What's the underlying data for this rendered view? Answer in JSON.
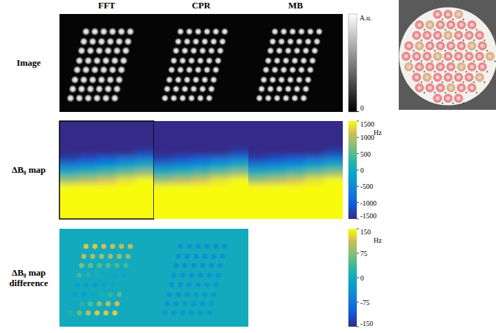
{
  "chart_data": {
    "type": "heatmap",
    "columns": [
      "FFT",
      "CPR",
      "MB"
    ],
    "rows": [
      "Image",
      "ΔB₀ map",
      "ΔB₀ map difference"
    ],
    "image": {
      "xlim": [
        0,
        128
      ],
      "ylim": [
        0,
        128
      ],
      "colorbar": {
        "label": "A.u.",
        "ticks": [
          0
        ]
      },
      "spots": [
        {
          "y": 23,
          "x": [
            36,
            48,
            60,
            72,
            84,
            96
          ]
        },
        {
          "y": 36,
          "x": [
            33,
            45,
            57,
            69,
            81,
            93
          ]
        },
        {
          "y": 48,
          "x": [
            30,
            42,
            54,
            66,
            78,
            90
          ]
        },
        {
          "y": 61,
          "x": [
            27,
            39,
            51,
            63,
            75,
            87
          ]
        },
        {
          "y": 73,
          "x": [
            24,
            36,
            48,
            60,
            72,
            84
          ]
        },
        {
          "y": 86,
          "x": [
            21,
            33,
            45,
            57,
            69,
            81
          ]
        },
        {
          "y": 98,
          "x": [
            18,
            30,
            42,
            54,
            66,
            78
          ]
        },
        {
          "y": 110,
          "x": [
            15,
            27,
            39,
            51,
            63,
            75
          ]
        }
      ]
    },
    "b0_map": {
      "colorbar": {
        "unit": "Hz",
        "lim": [
          -1500,
          1500
        ],
        "ticks": [
          1500,
          1000,
          500,
          0,
          -500,
          -1000,
          -1500
        ]
      },
      "maps": [
        [
          [
            -1500,
            -1500,
            -1500,
            -1500,
            -1500
          ],
          [
            -1500,
            -1500,
            -1500,
            -1500,
            -1500
          ],
          [
            -1500,
            -1500,
            -1500,
            -1500,
            -1500
          ],
          [
            -1500,
            -1500,
            -1500,
            -1500,
            -1500
          ],
          [
            -1500,
            -1500,
            -1500,
            -1500,
            -1290
          ],
          [
            -1270,
            -1120,
            -970,
            -770,
            -570
          ],
          [
            -560,
            -410,
            -260,
            -60,
            140
          ],
          [
            160,
            310,
            460,
            660,
            860
          ],
          [
            870,
            1020,
            1170,
            1370,
            1500
          ],
          [
            1500,
            1500,
            1500,
            1500,
            1500
          ],
          [
            1500,
            1500,
            1500,
            1500,
            1500
          ],
          [
            1500,
            1500,
            1500,
            1500,
            1500
          ],
          [
            1500,
            1500,
            1500,
            1500,
            1500
          ],
          [
            1500,
            1500,
            1500,
            1500,
            1500
          ]
        ],
        [
          [
            -1500,
            -1500,
            -1500,
            -1500,
            -1500
          ],
          [
            -1500,
            -1500,
            -1500,
            -1500,
            -1500
          ],
          [
            -1500,
            -1500,
            -1500,
            -1500,
            -1500
          ],
          [
            -1500,
            -1500,
            -1500,
            -1500,
            -1500
          ],
          [
            -1500,
            -1500,
            -1500,
            -1500,
            -1290
          ],
          [
            -1270,
            -1120,
            -970,
            -770,
            -570
          ],
          [
            -560,
            -410,
            -260,
            -60,
            140
          ],
          [
            160,
            310,
            460,
            660,
            860
          ],
          [
            870,
            1020,
            1170,
            1370,
            1500
          ],
          [
            1500,
            1500,
            1500,
            1500,
            1500
          ],
          [
            1500,
            1500,
            1500,
            1500,
            1500
          ],
          [
            1500,
            1500,
            1500,
            1500,
            1500
          ],
          [
            1500,
            1500,
            1500,
            1500,
            1500
          ],
          [
            1500,
            1500,
            1500,
            1500,
            1500
          ]
        ],
        [
          [
            -1500,
            -1500,
            -1500,
            -1500,
            -1500
          ],
          [
            -1500,
            -1500,
            -1500,
            -1500,
            -1500
          ],
          [
            -1500,
            -1500,
            -1500,
            -1500,
            -1500
          ],
          [
            -1500,
            -1500,
            -1500,
            -1500,
            -1500
          ],
          [
            -1500,
            -1500,
            -1500,
            -1500,
            -1290
          ],
          [
            -1270,
            -1120,
            -970,
            -770,
            -570
          ],
          [
            -560,
            -410,
            -260,
            -60,
            140
          ],
          [
            160,
            310,
            460,
            660,
            860
          ],
          [
            870,
            1020,
            1170,
            1370,
            1500
          ],
          [
            1500,
            1500,
            1500,
            1500,
            1500
          ],
          [
            1500,
            1500,
            1500,
            1500,
            1500
          ],
          [
            1500,
            1500,
            1500,
            1500,
            1500
          ],
          [
            1500,
            1500,
            1500,
            1500,
            1500
          ],
          [
            1500,
            1500,
            1500,
            1500,
            1500
          ]
        ]
      ]
    },
    "difference": {
      "colorbar": {
        "unit": "Hz",
        "lim": [
          -150,
          150
        ],
        "ticks": [
          150,
          75,
          0,
          -75,
          -150
        ]
      },
      "background": 0,
      "values": [
        [
          [
            120,
            120,
            115,
            110,
            105,
            100
          ],
          [
            100,
            95,
            90,
            85,
            80,
            75
          ],
          [
            70,
            60,
            50,
            50,
            45,
            40
          ],
          [
            40,
            20,
            10,
            0,
            -10,
            -10
          ],
          [
            -20,
            -25,
            -25,
            -20,
            -10,
            0
          ],
          [
            -20,
            -20,
            -10,
            10,
            30,
            50
          ],
          [
            0,
            20,
            50,
            80,
            100,
            110
          ],
          [
            20,
            60,
            100,
            120,
            120,
            125
          ]
        ],
        [
          [
            -40,
            -40,
            -45,
            -40,
            -40,
            -35
          ],
          [
            -40,
            -45,
            -45,
            -40,
            -40,
            -35
          ],
          [
            -45,
            -45,
            -40,
            -40,
            -35,
            -35
          ],
          [
            -40,
            -40,
            -40,
            -35,
            -35,
            -30
          ],
          [
            -40,
            -40,
            -35,
            -35,
            -30,
            -30
          ],
          [
            -35,
            -35,
            -35,
            -30,
            -30,
            -30
          ],
          [
            -35,
            -35,
            -30,
            -30,
            -30,
            -25
          ],
          [
            -30,
            -30,
            -30,
            -30,
            -25,
            -25
          ]
        ]
      ]
    }
  }
}
